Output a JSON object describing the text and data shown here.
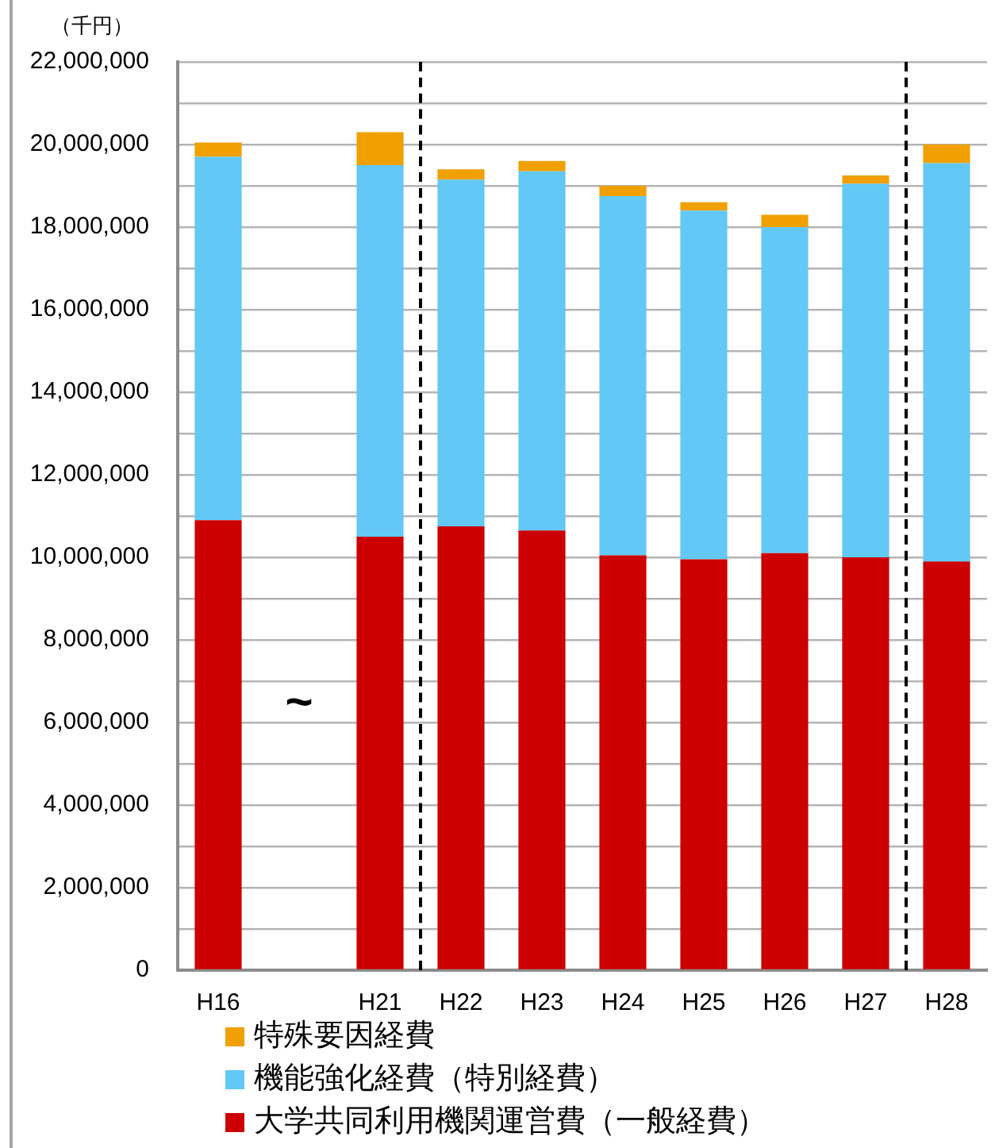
{
  "chart_data": {
    "type": "bar",
    "stacked": true,
    "ylabel": "（千円）",
    "categories": [
      "H16",
      null,
      "H21",
      "H22",
      "H23",
      "H24",
      "H25",
      "H26",
      "H27",
      "H28"
    ],
    "series": [
      {
        "name": "大学共同利用機関運営費（一般経費）",
        "color": "#cc0000",
        "values": [
          10900000,
          null,
          10500000,
          10750000,
          10650000,
          10050000,
          9950000,
          10100000,
          10000000,
          9900000
        ]
      },
      {
        "name": "機能強化経費（特別経費）",
        "color": "#62c8f6",
        "values": [
          8800000,
          null,
          9000000,
          8400000,
          8700000,
          8700000,
          8450000,
          7900000,
          9050000,
          9650000
        ]
      },
      {
        "name": "特殊要因経費",
        "color": "#f0a000",
        "values": [
          350000,
          null,
          800000,
          250000,
          250000,
          250000,
          200000,
          300000,
          200000,
          450000
        ]
      }
    ],
    "ylim": [
      0,
      22000000
    ],
    "yticks": [
      0,
      {
        "value": 1000000,
        "label": null
      },
      {
        "value": 2000000,
        "label": "2,000,000"
      },
      {
        "value": 3000000,
        "label": null
      },
      {
        "value": 4000000,
        "label": "4,000,000"
      },
      {
        "value": 5000000,
        "label": null
      },
      {
        "value": 6000000,
        "label": "6,000,000"
      },
      {
        "value": 7000000,
        "label": null
      },
      {
        "value": 8000000,
        "label": "8,000,000"
      },
      {
        "value": 9000000,
        "label": null
      },
      {
        "value": 10000000,
        "label": "10,000,000"
      },
      {
        "value": 11000000,
        "label": null
      },
      {
        "value": 12000000,
        "label": "12,000,000"
      },
      {
        "value": 13000000,
        "label": null
      },
      {
        "value": 14000000,
        "label": "14,000,000"
      },
      {
        "value": 15000000,
        "label": null
      },
      {
        "value": 16000000,
        "label": "16,000,000"
      },
      {
        "value": 17000000,
        "label": null
      },
      {
        "value": 18000000,
        "label": "18,000,000"
      },
      {
        "value": 19000000,
        "label": null
      },
      {
        "value": 20000000,
        "label": "20,000,000"
      },
      {
        "value": 21000000,
        "label": null
      },
      {
        "value": 22000000,
        "label": "22,000,000"
      }
    ],
    "grid": "y",
    "legend": "bottom",
    "annotations": [
      "~"
    ]
  }
}
